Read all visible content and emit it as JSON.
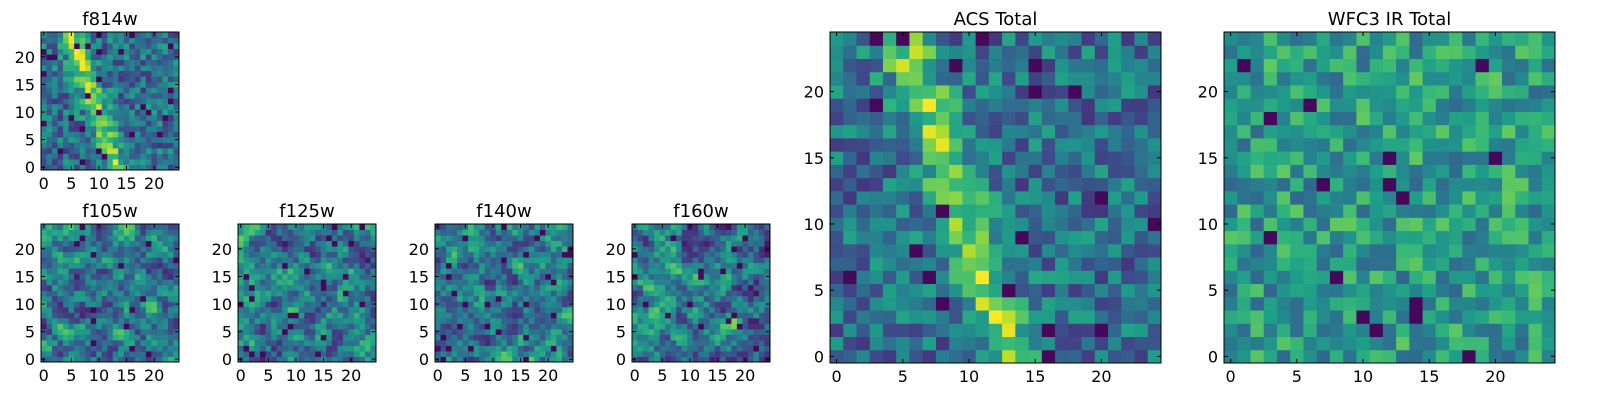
{
  "chart_data": [
    {
      "type": "heatmap",
      "id": "f814w",
      "title": "f814w",
      "grid": [
        25,
        25
      ],
      "xticks": [
        0,
        5,
        10,
        15,
        20
      ],
      "yticks": [
        0,
        5,
        10,
        15,
        20
      ],
      "xlim": [
        -0.5,
        24.5
      ],
      "ylim": [
        -0.5,
        24.5
      ],
      "colormap": "viridis",
      "pattern": "diagonal-band",
      "seed": 11
    },
    {
      "type": "heatmap",
      "id": "f105w",
      "title": "f105w",
      "grid": [
        25,
        25
      ],
      "xticks": [
        0,
        5,
        10,
        15,
        20
      ],
      "yticks": [
        0,
        5,
        10,
        15,
        20
      ],
      "xlim": [
        -0.5,
        24.5
      ],
      "ylim": [
        -0.5,
        24.5
      ],
      "colormap": "viridis",
      "pattern": "smooth-noise",
      "seed": 23
    },
    {
      "type": "heatmap",
      "id": "f125w",
      "title": "f125w",
      "grid": [
        25,
        25
      ],
      "xticks": [
        0,
        5,
        10,
        15,
        20
      ],
      "yticks": [
        0,
        5,
        10,
        15,
        20
      ],
      "xlim": [
        -0.5,
        24.5
      ],
      "ylim": [
        -0.5,
        24.5
      ],
      "colormap": "viridis",
      "pattern": "smooth-noise",
      "seed": 37
    },
    {
      "type": "heatmap",
      "id": "f140w",
      "title": "f140w",
      "grid": [
        25,
        25
      ],
      "xticks": [
        0,
        5,
        10,
        15,
        20
      ],
      "yticks": [
        0,
        5,
        10,
        15,
        20
      ],
      "xlim": [
        -0.5,
        24.5
      ],
      "ylim": [
        -0.5,
        24.5
      ],
      "colormap": "viridis",
      "pattern": "smooth-noise",
      "seed": 41
    },
    {
      "type": "heatmap",
      "id": "f160w",
      "title": "f160w",
      "grid": [
        25,
        25
      ],
      "xticks": [
        0,
        5,
        10,
        15,
        20
      ],
      "yticks": [
        0,
        5,
        10,
        15,
        20
      ],
      "xlim": [
        -0.5,
        24.5
      ],
      "ylim": [
        -0.5,
        24.5
      ],
      "colormap": "viridis",
      "pattern": "smooth-noise",
      "seed": 53
    },
    {
      "type": "heatmap",
      "id": "acs_total",
      "title": "ACS Total",
      "grid": [
        25,
        25
      ],
      "xticks": [
        0,
        5,
        10,
        15,
        20
      ],
      "yticks": [
        0,
        5,
        10,
        15,
        20
      ],
      "xlim": [
        -0.5,
        24.5
      ],
      "ylim": [
        -0.5,
        24.5
      ],
      "colormap": "viridis",
      "pattern": "diagonal-band",
      "seed": 67
    },
    {
      "type": "heatmap",
      "id": "wfc3_ir_total",
      "title": "WFC3 IR Total",
      "grid": [
        25,
        25
      ],
      "xticks": [
        0,
        5,
        10,
        15,
        20
      ],
      "yticks": [
        0,
        5,
        10,
        15,
        20
      ],
      "xlim": [
        -0.5,
        24.5
      ],
      "ylim": [
        -0.5,
        24.5
      ],
      "colormap": "viridis",
      "pattern": "noise",
      "seed": 79
    }
  ]
}
